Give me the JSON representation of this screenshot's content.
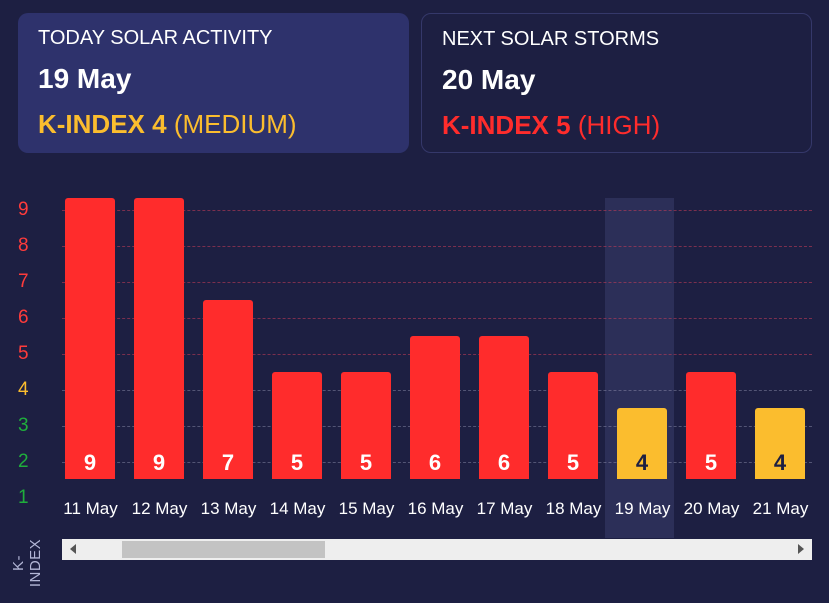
{
  "today_card": {
    "title": "TODAY SOLAR ACTIVITY",
    "date": "19 May",
    "kindex_label": "K-INDEX 4",
    "level": "(MEDIUM)",
    "color": "#fbbd2e"
  },
  "next_card": {
    "title": "NEXT SOLAR STORMS",
    "date": "20 May",
    "kindex_label": "K-INDEX 5",
    "level": "(HIGH)",
    "color": "#ff2c2c"
  },
  "axis": {
    "ylabel": "K-INDEX",
    "yticks": [
      {
        "label": "9",
        "color": "#ff3b3b"
      },
      {
        "label": "8",
        "color": "#ff3b3b"
      },
      {
        "label": "7",
        "color": "#ff3b3b"
      },
      {
        "label": "6",
        "color": "#ff3b3b"
      },
      {
        "label": "5",
        "color": "#ff3b3b"
      },
      {
        "label": "4",
        "color": "#fbbd2e"
      },
      {
        "label": "3",
        "color": "#1fae3c"
      },
      {
        "label": "2",
        "color": "#1fae3c"
      },
      {
        "label": "1",
        "color": "#1fae3c"
      }
    ]
  },
  "colors": {
    "high": "#ff2c2c",
    "medium": "#fbbd2e",
    "background": "#1d1f42",
    "highlight": "#2c2f58"
  },
  "chart_data": {
    "type": "bar",
    "title": "",
    "xlabel": "",
    "ylabel": "K-INDEX",
    "ylim": [
      1,
      9
    ],
    "grid": true,
    "categories": [
      "11 May",
      "12 May",
      "13 May",
      "14 May",
      "15 May",
      "16 May",
      "17 May",
      "18 May",
      "19 May",
      "20 May",
      "21 May"
    ],
    "values": [
      9,
      9,
      7,
      5,
      5,
      6,
      6,
      5,
      4,
      5,
      4
    ],
    "bar_colors": [
      "#ff2c2c",
      "#ff2c2c",
      "#ff2c2c",
      "#ff2c2c",
      "#ff2c2c",
      "#ff2c2c",
      "#ff2c2c",
      "#ff2c2c",
      "#fbbd2e",
      "#ff2c2c",
      "#fbbd2e"
    ],
    "highlighted_category": "19 May"
  },
  "scrollbar": {
    "left_arrow": "scroll-left",
    "right_arrow": "scroll-right"
  }
}
